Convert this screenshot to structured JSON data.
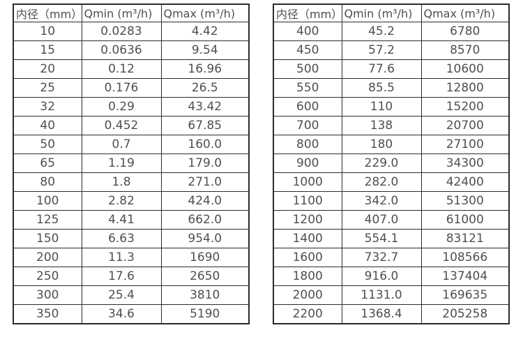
{
  "page": {
    "background_color": "#ffffff",
    "text_color": "#4f4f4f",
    "border_color": "#2b2b2b"
  },
  "tables": [
    {
      "name": "flow-table-small-diameters",
      "headers": [
        "内径（mm）",
        "Qmin (m³/h)",
        "Qmax (m³/h)"
      ],
      "rows": [
        [
          "10",
          "0.0283",
          "4.42"
        ],
        [
          "15",
          "0.0636",
          "9.54"
        ],
        [
          "20",
          "0.12",
          "16.96"
        ],
        [
          "25",
          "0.176",
          "26.5"
        ],
        [
          "32",
          "0.29",
          "43.42"
        ],
        [
          "40",
          "0.452",
          "67.85"
        ],
        [
          "50",
          "0.7",
          "160.0"
        ],
        [
          "65",
          "1.19",
          "179.0"
        ],
        [
          "80",
          "1.8",
          "271.0"
        ],
        [
          "100",
          "2.82",
          "424.0"
        ],
        [
          "125",
          "4.41",
          "662.0"
        ],
        [
          "150",
          "6.63",
          "954.0"
        ],
        [
          "200",
          "11.3",
          "1690"
        ],
        [
          "250",
          "17.6",
          "2650"
        ],
        [
          "300",
          "25.4",
          "3810"
        ],
        [
          "350",
          "34.6",
          "5190"
        ]
      ]
    },
    {
      "name": "flow-table-large-diameters",
      "headers": [
        "内径（mm）",
        "Qmin (m³/h)",
        "Qmax (m³/h)"
      ],
      "rows": [
        [
          "400",
          "45.2",
          "6780"
        ],
        [
          "450",
          "57.2",
          "8570"
        ],
        [
          "500",
          "77.6",
          "10600"
        ],
        [
          "550",
          "85.5",
          "12800"
        ],
        [
          "600",
          "110",
          "15200"
        ],
        [
          "700",
          "138",
          "20700"
        ],
        [
          "800",
          "180",
          "27100"
        ],
        [
          "900",
          "229.0",
          "34300"
        ],
        [
          "1000",
          "282.0",
          "42400"
        ],
        [
          "1100",
          "342.0",
          "51300"
        ],
        [
          "1200",
          "407.0",
          "61000"
        ],
        [
          "1400",
          "554.1",
          "83121"
        ],
        [
          "1600",
          "732.7",
          "108566"
        ],
        [
          "1800",
          "916.0",
          "137404"
        ],
        [
          "2000",
          "1131.0",
          "169635"
        ],
        [
          "2200",
          "1368.4",
          "205258"
        ]
      ]
    }
  ]
}
